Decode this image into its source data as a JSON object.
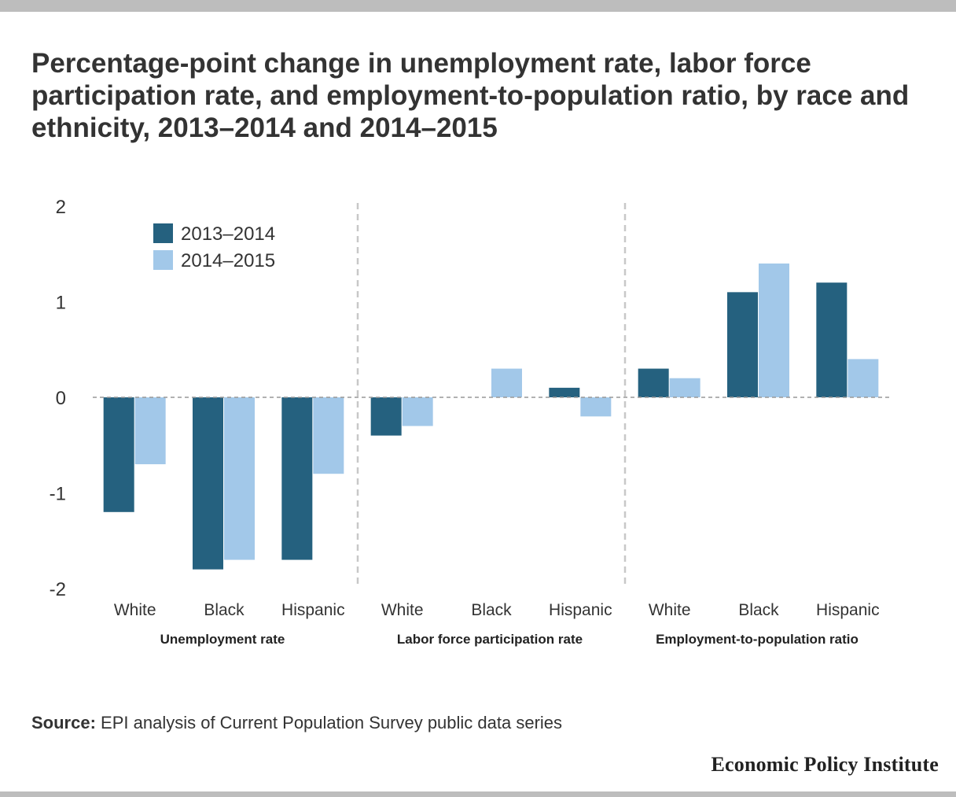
{
  "title": "Percentage-point change in unemployment rate, labor force participation rate, and employment-to-population ratio, by race and ethnicity, 2013–2014 and 2014–2015",
  "source": {
    "label": "Source:",
    "text": "EPI analysis of Current Population Survey public data series"
  },
  "brand": "Economic Policy Institute",
  "colors": {
    "series_2013_2014": "#25617f",
    "series_2014_2015": "#a2c8e9",
    "divider": "#c8c8c8",
    "zero_line": "#999999",
    "text": "#333333",
    "frame_bars": "#bdbdbd"
  },
  "chart_data": {
    "type": "bar",
    "ylim": [
      -2,
      2
    ],
    "yticks": [
      2,
      1,
      0,
      -1,
      -2
    ],
    "ytick_labels": [
      "2",
      "1",
      "0",
      "-1",
      "-2"
    ],
    "legend_position": "top-left",
    "grid": false,
    "series": [
      {
        "name": "2013–2014"
      },
      {
        "name": "2014–2015"
      }
    ],
    "groups": [
      {
        "name": "Unemployment rate",
        "categories": [
          "White",
          "Black",
          "Hispanic"
        ],
        "values": [
          [
            -1.2,
            -0.7
          ],
          [
            -1.8,
            -1.7
          ],
          [
            -1.7,
            -0.8
          ]
        ]
      },
      {
        "name": "Labor force participation rate",
        "categories": [
          "White",
          "Black",
          "Hispanic"
        ],
        "values": [
          [
            -0.4,
            -0.3
          ],
          [
            0,
            0.3
          ],
          [
            0.1,
            -0.2
          ]
        ]
      },
      {
        "name": "Employment-to-population ratio",
        "categories": [
          "White",
          "Black",
          "Hispanic"
        ],
        "values": [
          [
            0.3,
            0.2
          ],
          [
            1.1,
            1.4
          ],
          [
            1.2,
            0.4
          ]
        ]
      }
    ]
  }
}
